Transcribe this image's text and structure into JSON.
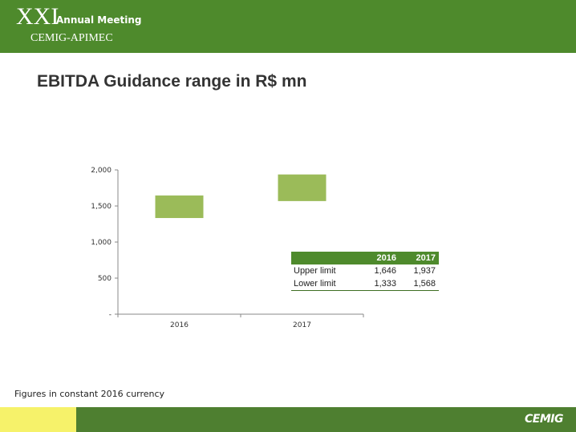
{
  "header": {
    "edition": "XXI",
    "event": "Annual Meeting",
    "subtitle": "CEMIG-APIMEC"
  },
  "page_title": "EBITDA Guidance range in R$ mn",
  "note": "Figures in constant 2016 currency",
  "footer": {
    "logo_text": "CEMIG"
  },
  "colors": {
    "header_green": "#4e8a2c",
    "bar_green": "#9bbb59",
    "footer_yellow": "#f6f26a"
  },
  "chart_data": {
    "type": "bar",
    "subtype": "floating-range",
    "categories": [
      "2016",
      "2017"
    ],
    "series": [
      {
        "name": "Lower limit",
        "values": [
          1333,
          1568
        ]
      },
      {
        "name": "Upper limit",
        "values": [
          1646,
          1937
        ]
      }
    ],
    "ylim": [
      0,
      2000
    ],
    "yticks": [
      0,
      500,
      1000,
      1500,
      2000
    ],
    "ytick_labels": [
      "-",
      "500",
      "1,000",
      "1,500",
      "2,000"
    ],
    "grid": false,
    "table": {
      "headers": [
        "",
        "2016",
        "2017"
      ],
      "rows": [
        [
          "Upper limit",
          "1,646",
          "1,937"
        ],
        [
          "Lower limit",
          "1,333",
          "1,568"
        ]
      ]
    }
  }
}
